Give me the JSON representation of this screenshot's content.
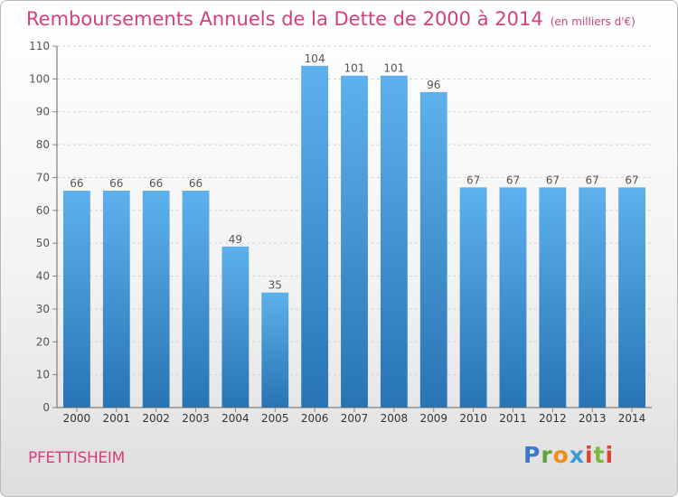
{
  "title": "Remboursements Annuels de la Dette de 2000 à 2014",
  "unit": "(en milliers d'€)",
  "commune": "PFETTISHEIM",
  "logo": "Proxiti",
  "colors": {
    "title": "#d4407e",
    "bar_top": "#5eb1ec",
    "bar_bottom": "#2874b4"
  },
  "chart_data": {
    "type": "bar",
    "categories": [
      "2000",
      "2001",
      "2002",
      "2003",
      "2004",
      "2005",
      "2006",
      "2007",
      "2008",
      "2009",
      "2010",
      "2011",
      "2012",
      "2013",
      "2014"
    ],
    "values": [
      66,
      66,
      66,
      66,
      49,
      35,
      104,
      101,
      101,
      96,
      67,
      67,
      67,
      67,
      67
    ],
    "ylim": [
      0,
      110
    ],
    "yticks": [
      0,
      10,
      20,
      30,
      40,
      50,
      60,
      70,
      80,
      90,
      100,
      110
    ],
    "grid": true
  }
}
